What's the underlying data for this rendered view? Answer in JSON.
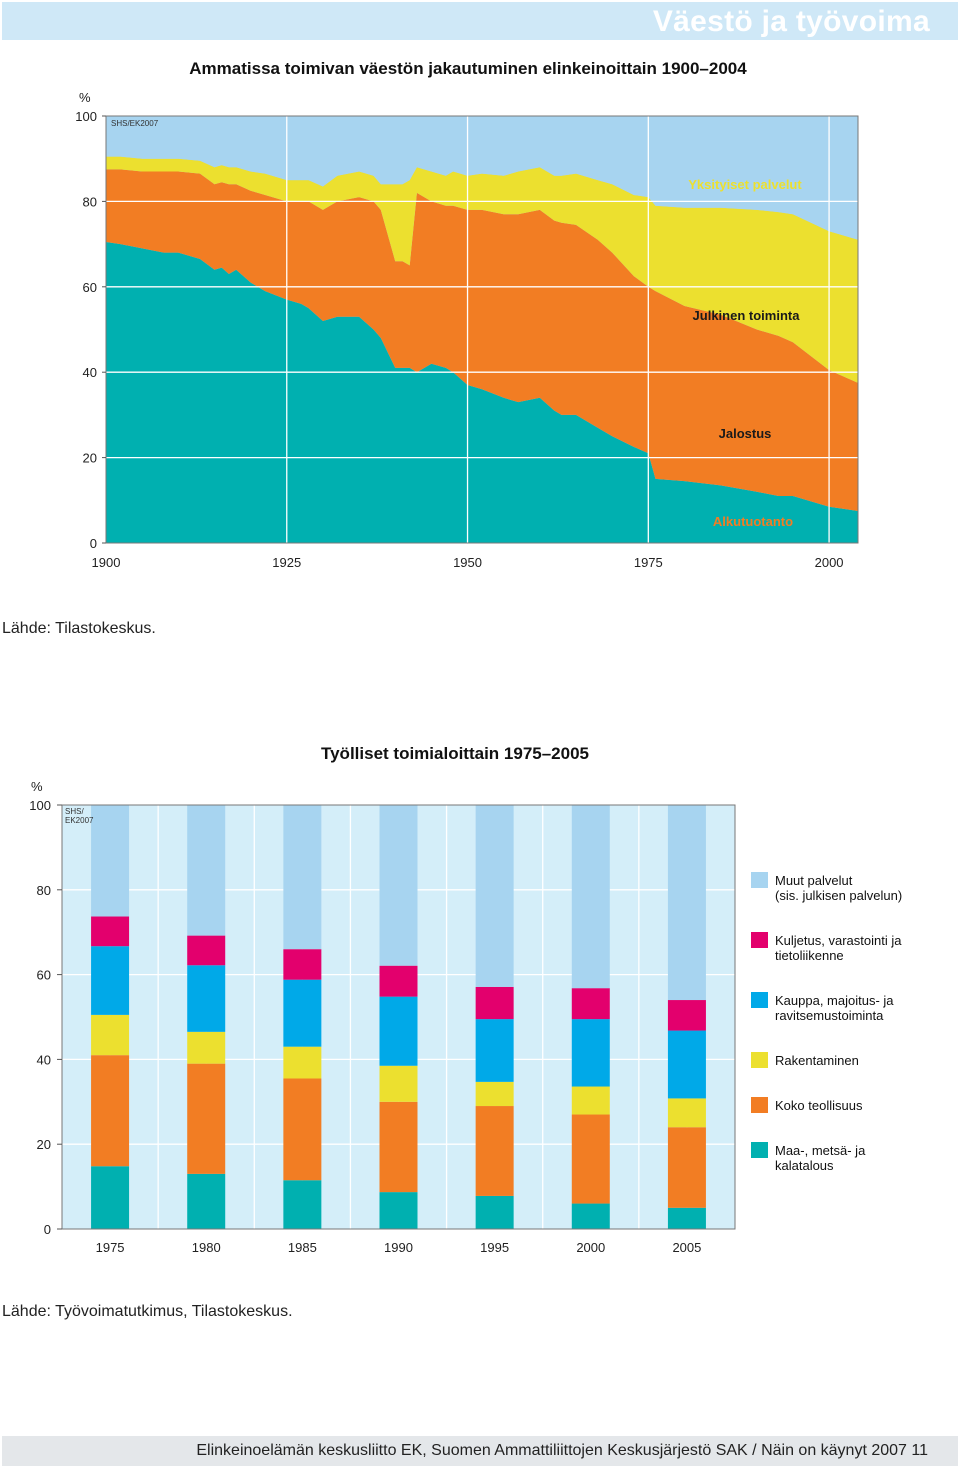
{
  "header": {
    "title": "Väestö ja työvoima"
  },
  "colors": {
    "sky": "#a7d4f0",
    "yellow": "#ece02f",
    "orange": "#f27d23",
    "teal": "#00b0b0",
    "magenta": "#e3006d",
    "blue": "#00a9e8",
    "panel": "#d4eef9"
  },
  "chart_data": [
    {
      "type": "area",
      "title": "Ammatissa toimivan väestön jakautuminen elinkeinoittain 1900–2004",
      "ylabel": "%",
      "credit": "SHS/EK2007",
      "xlim": [
        1900,
        2004
      ],
      "ylim": [
        0,
        100
      ],
      "x_ticks": [
        "1900",
        "1925",
        "1950",
        "1975",
        "2000"
      ],
      "y_ticks": [
        "0",
        "20",
        "40",
        "60",
        "80",
        "100"
      ],
      "x": [
        1900,
        1902,
        1905,
        1908,
        1910,
        1913,
        1915,
        1916,
        1917,
        1918,
        1920,
        1922,
        1925,
        1927,
        1928,
        1930,
        1932,
        1935,
        1937,
        1938,
        1940,
        1941,
        1942,
        1943,
        1945,
        1947,
        1948,
        1950,
        1952,
        1955,
        1957,
        1960,
        1962,
        1963,
        1965,
        1968,
        1970,
        1973,
        1975,
        1976,
        1980,
        1985,
        1990,
        1993,
        1995,
        2000,
        2004
      ],
      "series": [
        {
          "name": "Alkutuotanto",
          "label": "Alkutuotanto",
          "values": [
            70.5,
            70,
            69,
            68,
            68,
            66.5,
            64,
            64.5,
            63,
            64,
            61,
            59,
            57,
            56,
            55,
            52,
            53,
            53,
            50,
            48,
            41,
            41,
            41,
            40,
            42,
            41,
            40,
            37,
            36,
            34,
            33,
            34,
            31,
            30,
            30,
            27,
            25,
            22.5,
            21,
            15,
            14.5,
            13.5,
            12,
            11,
            11,
            8.5,
            7.5
          ]
        },
        {
          "name": "Jalostus",
          "label": "Jalostus",
          "values": [
            17,
            17.5,
            18,
            19,
            19,
            20,
            20,
            20,
            21,
            20,
            21.5,
            22.5,
            23,
            24,
            25,
            26,
            27,
            28,
            30,
            30,
            25,
            25,
            24,
            42,
            38,
            38,
            39,
            41,
            42,
            43,
            44,
            44,
            44.5,
            45,
            44.5,
            44,
            43,
            40,
            39,
            44,
            41,
            40,
            38,
            37.5,
            36,
            32,
            30
          ]
        },
        {
          "name": "Julkinen toiminta",
          "label": "Julkinen toiminta",
          "values": [
            3,
            3,
            3,
            3,
            3,
            3,
            4,
            4,
            4,
            4,
            4.5,
            5,
            5,
            5,
            5,
            5.5,
            6,
            6,
            6,
            6,
            18,
            18,
            20,
            6,
            7,
            7,
            8,
            8,
            8.5,
            9,
            10,
            10,
            10.5,
            11,
            12,
            14,
            16,
            19,
            21,
            20,
            23,
            25,
            28,
            29,
            30,
            32.5,
            33.5
          ]
        },
        {
          "name": "Yksityiset palvelut",
          "label": "Yksityiset palvelut",
          "values": [
            9.5,
            9.5,
            10,
            10,
            10,
            10.5,
            12,
            11.5,
            12,
            12,
            13,
            13.5,
            15,
            15,
            15,
            16.5,
            14,
            13,
            14,
            16,
            16,
            16,
            15,
            12,
            13,
            14,
            13,
            14,
            13.5,
            14,
            13,
            12,
            14,
            14,
            13.5,
            15,
            16,
            18.5,
            19,
            21,
            21.5,
            21.5,
            22,
            22.5,
            23,
            27,
            29
          ]
        }
      ]
    },
    {
      "type": "bar",
      "stacked": true,
      "title": "Työlliset toimialoittain 1975–2005",
      "ylabel": "%",
      "credit_lines": [
        "SHS/",
        "EK2007"
      ],
      "ylim": [
        0,
        100
      ],
      "y_ticks": [
        "0",
        "20",
        "40",
        "60",
        "80",
        "100"
      ],
      "categories": [
        "1975",
        "1980",
        "1985",
        "1990",
        "1995",
        "2000",
        "2005"
      ],
      "series": [
        {
          "name": "Maa-, metsä- ja kalatalous",
          "label_lines": [
            "Maa-, metsä- ja",
            "kalatalous"
          ],
          "values": [
            14.8,
            13,
            11.5,
            8.7,
            7.8,
            6,
            5
          ]
        },
        {
          "name": "Koko teollisuus",
          "label_lines": [
            "Koko teollisuus"
          ],
          "values": [
            26.2,
            26,
            24,
            21.3,
            21.2,
            21,
            19
          ]
        },
        {
          "name": "Rakentaminen",
          "label_lines": [
            "Rakentaminen"
          ],
          "values": [
            9.5,
            7.5,
            7.5,
            8.5,
            5.7,
            6.6,
            6.8
          ]
        },
        {
          "name": "Kauppa, majoitus- ja ravitsemustoiminta",
          "label_lines": [
            "Kauppa, majoitus- ja",
            "ravitsemustoiminta"
          ],
          "values": [
            16.2,
            15.7,
            15.8,
            16.3,
            14.8,
            15.9,
            16
          ]
        },
        {
          "name": "Kuljetus, varastointi ja tietoliikenne",
          "label_lines": [
            "Kuljetus, varastointi ja",
            "tietoliikenne"
          ],
          "values": [
            7,
            7,
            7.2,
            7.3,
            7.6,
            7.3,
            7.2
          ]
        },
        {
          "name": "Muut palvelut (sis. julkisen palvelun)",
          "label_lines": [
            "Muut palvelut",
            "(sis. julkisen palvelun)"
          ],
          "values": [
            26.3,
            30.8,
            34,
            37.9,
            42.9,
            43.2,
            46
          ]
        }
      ]
    }
  ],
  "sources": {
    "source1": "Lähde: Tilastokeskus.",
    "source2": "Lähde: Työvoimatutkimus, Tilastokeskus."
  },
  "footer": {
    "text": "Elinkeinoelämän keskusliitto EK, Suomen Ammattiliittojen Keskusjärjestö SAK / Näin on käynyt 2007  11"
  }
}
